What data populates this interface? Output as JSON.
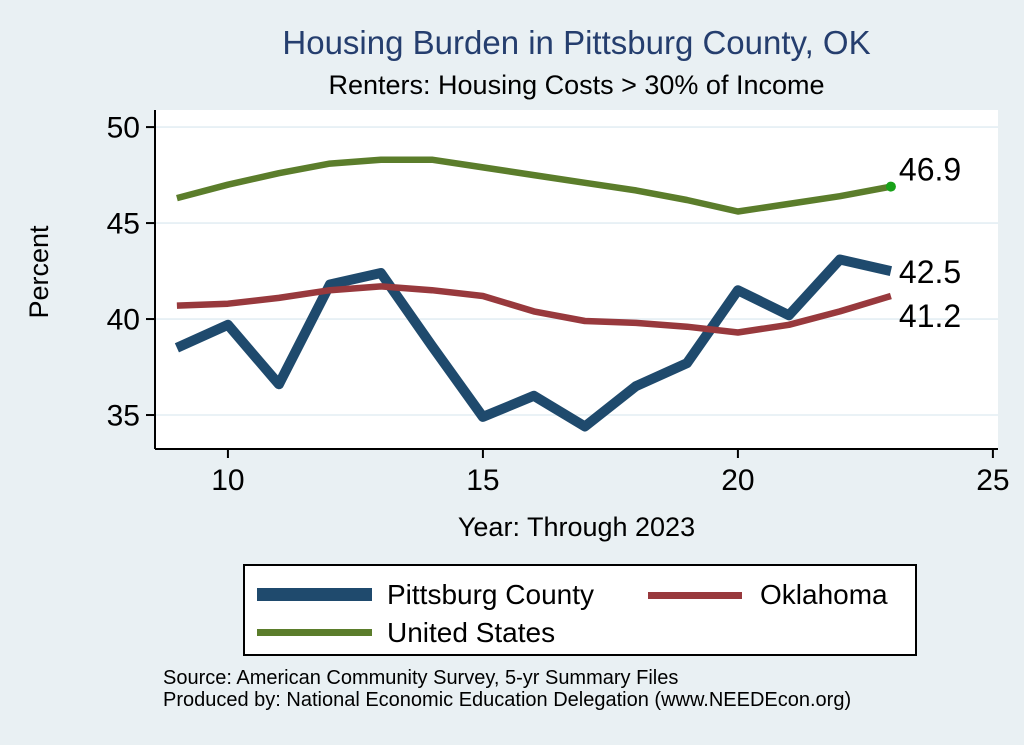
{
  "chart_data": {
    "type": "line",
    "title": "Housing Burden in Pittsburg County, OK",
    "subtitle": "Renters: Housing Costs > 30% of Income",
    "xlabel": "Year: Through 2023",
    "ylabel": "Percent",
    "x": [
      9,
      10,
      11,
      12,
      13,
      14,
      15,
      16,
      17,
      18,
      19,
      20,
      21,
      22,
      23
    ],
    "x_meaning": "Year 9 = 2009 through 23 = 2023",
    "xticks": [
      10,
      15,
      20,
      25
    ],
    "yticks": [
      35,
      40,
      45,
      50
    ],
    "xlim": [
      8.57,
      25.1
    ],
    "ylim": [
      33.23,
      50.89
    ],
    "grid": "horizontal",
    "legend_position": "bottom",
    "series": [
      {
        "name": "Pittsburg County",
        "color": "#1f4a6d",
        "line_width": 10,
        "values": [
          38.5,
          39.7,
          36.6,
          41.8,
          42.4,
          38.6,
          34.9,
          36.0,
          34.4,
          36.5,
          37.7,
          41.5,
          40.2,
          43.1,
          42.5
        ],
        "end_label": "42.5",
        "end_label_dy": 1
      },
      {
        "name": "Oklahoma",
        "color": "#98393d",
        "line_width": 6.5,
        "values": [
          40.7,
          40.8,
          41.1,
          41.5,
          41.7,
          41.5,
          41.2,
          40.4,
          39.9,
          39.8,
          39.6,
          39.3,
          39.7,
          40.4,
          41.2
        ],
        "end_label": "41.2",
        "end_label_dy": 20
      },
      {
        "name": "United States",
        "color": "#5b7d2b",
        "line_width": 6.5,
        "values": [
          46.3,
          47.0,
          47.6,
          48.1,
          48.3,
          48.3,
          47.9,
          47.5,
          47.1,
          46.7,
          46.2,
          45.6,
          46.0,
          46.4,
          46.9
        ],
        "end_label": "46.9",
        "end_label_dy": -17,
        "end_marker_color": "#18a118"
      }
    ],
    "colors": {
      "background": "#e9f0f3",
      "plot_background": "#ffffff",
      "grid": "#e7f0f5",
      "axis": "#000000",
      "title": "#253e6e"
    },
    "source_line1": "Source: American Community Survey, 5-yr Summary Files",
    "source_line2": "Produced by: National Economic Education Delegation (www.NEEDEcon.org)"
  }
}
